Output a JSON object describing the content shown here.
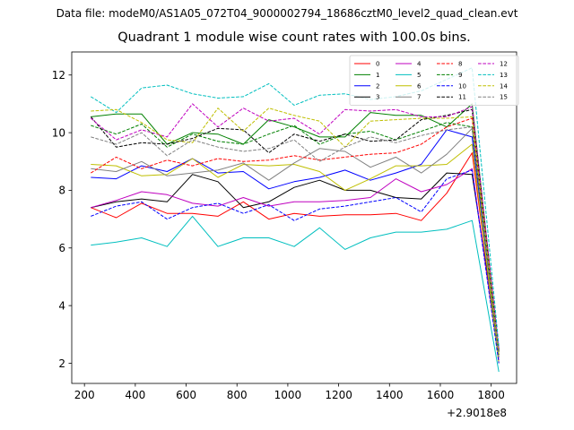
{
  "suptitle": "Data file: modeM0/AS1A05_072T04_9000002794_18686cztM0_level2_quad_clean.evt",
  "chart_data": {
    "type": "line",
    "title": "Quadrant 1 module wise count rates with 100.0s bins.",
    "xlabel": "",
    "ylabel": "",
    "x_offset_label": "+2.9018e8",
    "x": [
      225,
      325,
      425,
      525,
      625,
      725,
      825,
      925,
      1025,
      1125,
      1225,
      1325,
      1425,
      1525,
      1625,
      1725,
      1830
    ],
    "xlim": [
      150,
      1900
    ],
    "ylim": [
      1.3,
      12.8
    ],
    "xticks": [
      200,
      400,
      600,
      800,
      1000,
      1200,
      1400,
      1600,
      1800
    ],
    "yticks": [
      2,
      4,
      6,
      8,
      10,
      12
    ],
    "legend_position": "top-right",
    "legend_columns": 4,
    "grid": false,
    "series": [
      {
        "name": "0",
        "color": "#ff0000",
        "dash": "solid",
        "values": [
          7.4,
          7.05,
          7.55,
          7.2,
          7.2,
          7.1,
          7.6,
          7.0,
          7.2,
          7.1,
          7.15,
          7.15,
          7.2,
          6.95,
          7.9,
          9.3,
          2.2
        ]
      },
      {
        "name": "1",
        "color": "#008000",
        "dash": "solid",
        "values": [
          10.55,
          10.65,
          10.65,
          9.6,
          10.0,
          9.95,
          9.6,
          10.45,
          10.2,
          9.85,
          9.85,
          10.7,
          10.6,
          10.6,
          10.2,
          11.0,
          2.4
        ]
      },
      {
        "name": "2",
        "color": "#0000ff",
        "dash": "solid",
        "values": [
          8.45,
          8.4,
          8.85,
          8.65,
          9.1,
          8.6,
          8.65,
          8.05,
          8.3,
          8.45,
          8.7,
          8.35,
          8.6,
          8.9,
          10.1,
          9.85,
          2.3
        ]
      },
      {
        "name": "3",
        "color": "#000000",
        "dash": "solid",
        "values": [
          7.4,
          7.6,
          7.7,
          7.6,
          8.55,
          8.3,
          7.4,
          7.6,
          8.1,
          8.35,
          8.0,
          8.0,
          7.75,
          7.7,
          8.6,
          8.55,
          2.5
        ]
      },
      {
        "name": "4",
        "color": "#bf00bf",
        "dash": "solid",
        "values": [
          7.4,
          7.65,
          7.95,
          7.85,
          7.55,
          7.45,
          7.75,
          7.45,
          7.6,
          7.6,
          7.65,
          7.75,
          8.4,
          7.95,
          8.2,
          8.75,
          2.1
        ]
      },
      {
        "name": "5",
        "color": "#00bfbf",
        "dash": "solid",
        "values": [
          6.1,
          6.2,
          6.35,
          6.05,
          7.1,
          6.05,
          6.35,
          6.35,
          6.05,
          6.7,
          5.95,
          6.35,
          6.55,
          6.55,
          6.65,
          6.95,
          1.7
        ]
      },
      {
        "name": "6",
        "color": "#bfbf00",
        "dash": "solid",
        "values": [
          8.9,
          8.85,
          8.5,
          8.55,
          9.1,
          8.45,
          8.9,
          8.85,
          8.9,
          8.65,
          8.0,
          8.4,
          8.85,
          8.85,
          8.9,
          9.6,
          2.0
        ]
      },
      {
        "name": "7",
        "color": "#808080",
        "dash": "solid",
        "values": [
          8.75,
          8.65,
          9.0,
          8.5,
          8.6,
          8.7,
          8.95,
          8.35,
          8.95,
          9.45,
          9.35,
          8.8,
          9.15,
          8.6,
          9.25,
          10.15,
          2.3
        ]
      },
      {
        "name": "8",
        "color": "#ff0000",
        "dash": "dashed",
        "values": [
          8.6,
          9.15,
          8.75,
          9.05,
          8.85,
          9.1,
          9.0,
          9.05,
          9.2,
          9.05,
          9.15,
          9.25,
          9.3,
          9.6,
          10.2,
          10.5,
          2.3
        ]
      },
      {
        "name": "9",
        "color": "#008000",
        "dash": "dashed",
        "values": [
          10.25,
          9.95,
          10.3,
          9.5,
          9.95,
          9.7,
          9.6,
          9.95,
          10.25,
          9.6,
          9.95,
          10.05,
          9.75,
          10.05,
          10.35,
          10.2,
          2.2
        ]
      },
      {
        "name": "10",
        "color": "#0000ff",
        "dash": "dashed",
        "values": [
          7.1,
          7.45,
          7.6,
          7.0,
          7.4,
          7.55,
          7.2,
          7.5,
          6.95,
          7.35,
          7.45,
          7.6,
          7.75,
          7.25,
          8.4,
          8.7,
          2.0
        ]
      },
      {
        "name": "11",
        "color": "#000000",
        "dash": "dashed",
        "values": [
          10.55,
          9.5,
          9.65,
          9.6,
          9.8,
          10.15,
          10.1,
          9.3,
          9.95,
          9.7,
          9.95,
          9.7,
          9.75,
          10.45,
          10.6,
          10.8,
          2.4
        ]
      },
      {
        "name": "12",
        "color": "#bf00bf",
        "dash": "dashed",
        "values": [
          10.5,
          9.75,
          10.1,
          9.85,
          11.0,
          10.2,
          10.85,
          10.4,
          10.5,
          9.95,
          10.8,
          10.75,
          10.8,
          10.55,
          10.55,
          10.9,
          2.5
        ]
      },
      {
        "name": "13",
        "color": "#00bfbf",
        "dash": "dashed",
        "values": [
          11.25,
          10.7,
          11.55,
          11.65,
          11.35,
          11.2,
          11.25,
          11.7,
          10.95,
          11.3,
          11.35,
          11.15,
          11.25,
          11.45,
          11.85,
          12.25,
          2.6
        ]
      },
      {
        "name": "14",
        "color": "#bfbf00",
        "dash": "dashed",
        "values": [
          10.75,
          10.8,
          10.35,
          9.75,
          9.65,
          10.85,
          10.05,
          10.85,
          10.6,
          10.4,
          9.5,
          10.4,
          10.45,
          10.5,
          10.5,
          10.55,
          2.3
        ]
      },
      {
        "name": "15",
        "color": "#808080",
        "dash": "dashed",
        "values": [
          9.85,
          9.6,
          10.0,
          9.2,
          9.75,
          9.5,
          9.35,
          9.45,
          9.75,
          9.0,
          9.5,
          9.85,
          9.65,
          9.9,
          10.1,
          10.2,
          2.2
        ]
      }
    ]
  }
}
